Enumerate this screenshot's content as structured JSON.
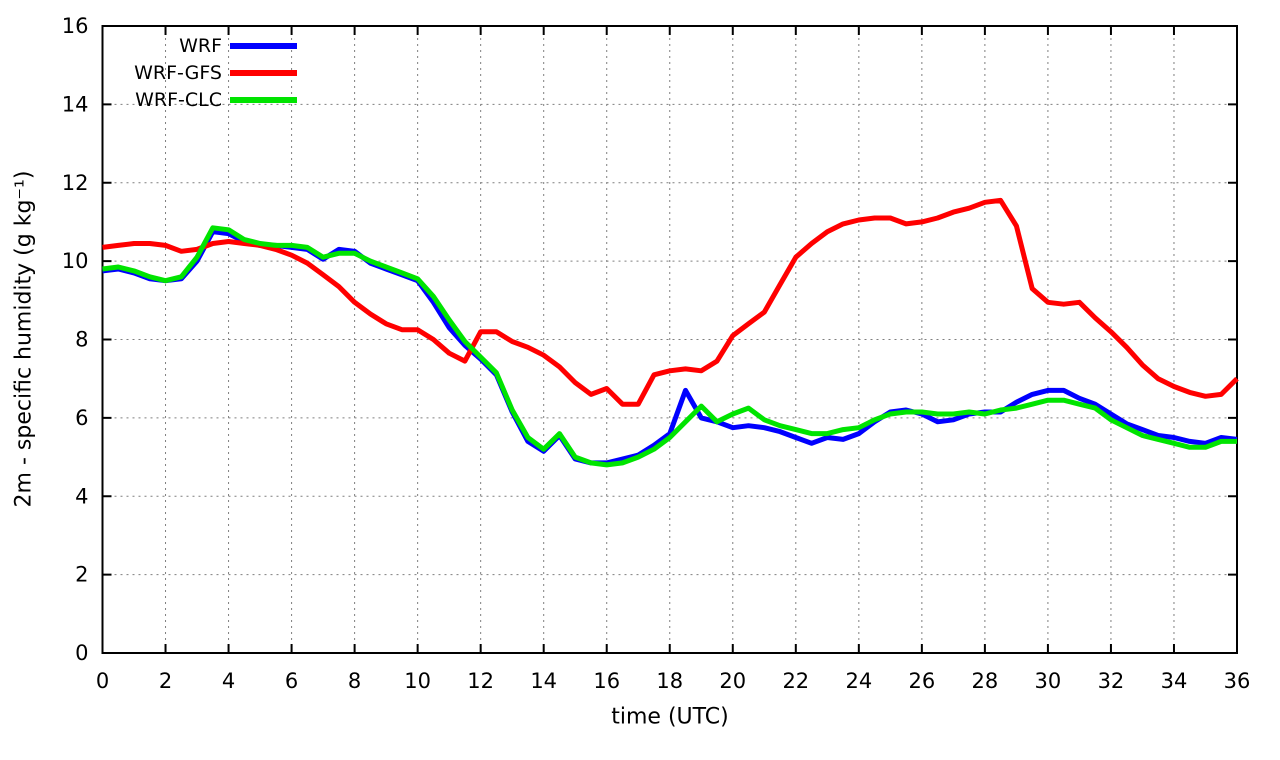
{
  "figure": {
    "background": "#ffffff",
    "plot_border_color": "#000000",
    "grid_color": "#7f7f7f"
  },
  "chart_data": {
    "type": "line",
    "title": "",
    "xlabel": "time (UTC)",
    "ylabel": "2m - specific humidity (g kg⁻¹)",
    "xlim": [
      0,
      36
    ],
    "ylim": [
      0,
      16
    ],
    "xticks": [
      0,
      2,
      4,
      6,
      8,
      10,
      12,
      14,
      16,
      18,
      20,
      22,
      24,
      26,
      28,
      30,
      32,
      34,
      36
    ],
    "yticks": [
      0,
      2,
      4,
      6,
      8,
      10,
      12,
      14,
      16
    ],
    "grid": true,
    "legend_position": "top-left-inside",
    "x": [
      0,
      0.5,
      1,
      1.5,
      2,
      2.5,
      3,
      3.5,
      4,
      4.5,
      5,
      5.5,
      6,
      6.5,
      7,
      7.5,
      8,
      8.5,
      9,
      9.5,
      10,
      10.5,
      11,
      11.5,
      12,
      12.5,
      13,
      13.5,
      14,
      14.5,
      15,
      15.5,
      16,
      16.5,
      17,
      17.5,
      18,
      18.5,
      19,
      19.5,
      20,
      20.5,
      21,
      21.5,
      22,
      22.5,
      23,
      23.5,
      24,
      24.5,
      25,
      25.5,
      26,
      26.5,
      27,
      27.5,
      28,
      28.5,
      29,
      29.5,
      30,
      30.5,
      31,
      31.5,
      32,
      32.5,
      33,
      33.5,
      34,
      34.5,
      35,
      35.5,
      36
    ],
    "series": [
      {
        "name": "WRF",
        "color": "#0000ff",
        "values": [
          9.75,
          9.8,
          9.7,
          9.55,
          9.5,
          9.55,
          10.0,
          10.75,
          10.7,
          10.5,
          10.4,
          10.4,
          10.35,
          10.3,
          10.05,
          10.3,
          10.25,
          9.95,
          9.8,
          9.65,
          9.5,
          8.95,
          8.3,
          7.85,
          7.5,
          7.1,
          6.15,
          5.4,
          5.15,
          5.55,
          4.95,
          4.85,
          4.85,
          4.95,
          5.05,
          5.3,
          5.6,
          6.7,
          6.0,
          5.9,
          5.75,
          5.8,
          5.75,
          5.65,
          5.5,
          5.35,
          5.5,
          5.45,
          5.6,
          5.9,
          6.15,
          6.2,
          6.1,
          5.9,
          5.95,
          6.1,
          6.15,
          6.15,
          6.4,
          6.6,
          6.7,
          6.7,
          6.5,
          6.35,
          6.1,
          5.85,
          5.7,
          5.55,
          5.5,
          5.4,
          5.35,
          5.5,
          5.45
        ]
      },
      {
        "name": "WRF-GFS",
        "color": "#ff0000",
        "values": [
          10.35,
          10.4,
          10.45,
          10.45,
          10.4,
          10.25,
          10.3,
          10.45,
          10.5,
          10.45,
          10.4,
          10.3,
          10.15,
          9.95,
          9.65,
          9.35,
          8.95,
          8.65,
          8.4,
          8.25,
          8.25,
          8.0,
          7.65,
          7.45,
          8.2,
          8.2,
          7.95,
          7.8,
          7.6,
          7.3,
          6.9,
          6.6,
          6.75,
          6.35,
          6.35,
          7.1,
          7.2,
          7.25,
          7.2,
          7.45,
          8.1,
          8.4,
          8.7,
          9.4,
          10.1,
          10.45,
          10.75,
          10.95,
          11.05,
          11.1,
          11.1,
          10.95,
          11.0,
          11.1,
          11.25,
          11.35,
          11.5,
          11.55,
          10.9,
          9.3,
          8.95,
          8.9,
          8.95,
          8.55,
          8.2,
          7.8,
          7.35,
          7.0,
          6.8,
          6.65,
          6.55,
          6.6,
          7.0
        ]
      },
      {
        "name": "WRF-CLC",
        "color": "#00e400",
        "values": [
          9.8,
          9.85,
          9.75,
          9.6,
          9.5,
          9.6,
          10.1,
          10.85,
          10.8,
          10.55,
          10.45,
          10.4,
          10.4,
          10.35,
          10.1,
          10.2,
          10.2,
          10.0,
          9.85,
          9.7,
          9.55,
          9.1,
          8.5,
          7.95,
          7.55,
          7.15,
          6.2,
          5.5,
          5.2,
          5.6,
          5.0,
          4.85,
          4.8,
          4.85,
          5.0,
          5.2,
          5.5,
          5.9,
          6.3,
          5.9,
          6.1,
          6.25,
          5.95,
          5.8,
          5.7,
          5.6,
          5.6,
          5.7,
          5.75,
          5.95,
          6.1,
          6.15,
          6.15,
          6.1,
          6.1,
          6.15,
          6.1,
          6.2,
          6.25,
          6.35,
          6.45,
          6.45,
          6.35,
          6.25,
          5.95,
          5.75,
          5.55,
          5.45,
          5.35,
          5.25,
          5.25,
          5.4,
          5.4
        ]
      }
    ]
  }
}
